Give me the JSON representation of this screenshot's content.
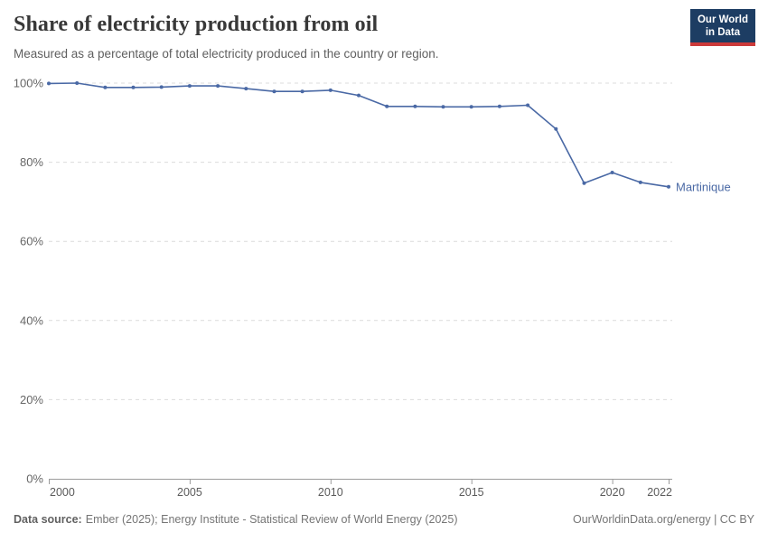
{
  "header": {
    "title": "Share of electricity production from oil",
    "subtitle": "Measured as a percentage of total electricity produced in the country or region."
  },
  "logo": {
    "line1": "Our World",
    "line2": "in Data",
    "bg_color": "#1d3d63",
    "accent_color": "#cc3a3a"
  },
  "chart_data": {
    "type": "line",
    "title": "Share of electricity production from oil",
    "x": [
      2000,
      2001,
      2002,
      2003,
      2004,
      2005,
      2006,
      2007,
      2008,
      2009,
      2010,
      2011,
      2012,
      2013,
      2014,
      2015,
      2016,
      2017,
      2018,
      2019,
      2020,
      2021,
      2022
    ],
    "series": [
      {
        "name": "Martinique",
        "color": "#4a69a5",
        "values": [
          99.9,
          100,
          98.9,
          98.9,
          99.0,
          99.3,
          99.3,
          98.6,
          97.9,
          97.9,
          98.2,
          96.9,
          94.1,
          94.1,
          94.0,
          94.0,
          94.1,
          94.4,
          88.4,
          74.7,
          77.4,
          74.9,
          73.8
        ]
      }
    ],
    "xlim": [
      2000,
      2022
    ],
    "ylim": [
      0,
      100
    ],
    "x_ticks": [
      2000,
      2005,
      2010,
      2015,
      2020,
      2022
    ],
    "y_ticks": [
      0,
      20,
      40,
      60,
      80,
      100
    ],
    "y_suffix": "%",
    "grid": "horizontal-dashed",
    "legend": "end-of-line-label"
  },
  "footer": {
    "source_label": "Data source:",
    "source_text": "Ember (2025); Energy Institute - Statistical Review of World Energy (2025)",
    "license": "OurWorldinData.org/energy | CC BY"
  }
}
